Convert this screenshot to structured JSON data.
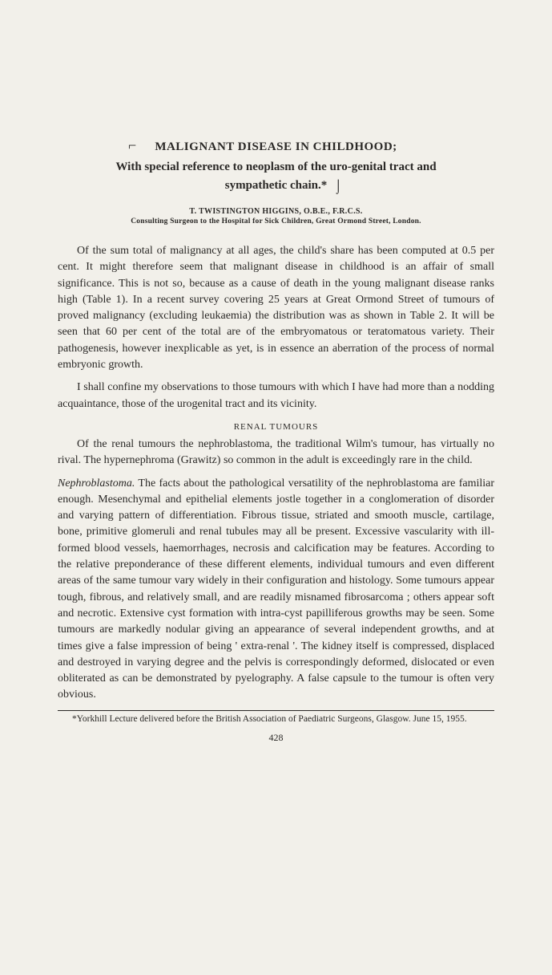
{
  "title_main": "MALIGNANT DISEASE IN CHILDHOOD;",
  "subtitle_line1": "With special reference to neoplasm of the uro-genital tract and",
  "subtitle_line2": "sympathetic chain.*",
  "author": "T. TWISTINGTON HIGGINS, O.B.E., F.R.C.S.",
  "affiliation": "Consulting Surgeon to the Hospital for Sick Children, Great Ormond Street, London.",
  "para1": "Of the sum total of malignancy at all ages, the child's share has been computed at 0.5 per cent. It might therefore seem that malignant disease in childhood is an affair of small significance. This is not so, because as a cause of death in the young malignant disease ranks high (Table 1). In a recent survey covering 25 years at Great Ormond Street of tumours of proved malignancy (excluding leukaemia) the distribution was as shown in Table 2. It will be seen that 60 per cent of the total are of the embryomatous or teratomatous variety. Their pathogenesis, however inexplicable as yet, is in essence an aberration of the process of normal embryonic growth.",
  "para2": "I shall confine my observations to those tumours with which I have had more than a nodding acquaintance, those of the urogenital tract and its vicinity.",
  "section_heading": "RENAL TUMOURS",
  "para3": "Of the renal tumours the nephroblastoma, the traditional Wilm's tumour, has virtually no rival. The hypernephroma (Grawitz) so common in the adult is exceedingly rare in the child.",
  "para4_italic": "Nephroblastoma.",
  "para4_rest": " The facts about the pathological versatility of the nephroblastoma are familiar enough. Mesenchymal and epithelial elements jostle together in a conglomeration of disorder and varying pattern of differentiation. Fibrous tissue, striated and smooth muscle, cartilage, bone, primitive glomeruli and renal tubules may all be present. Excessive vascularity with ill-formed blood vessels, haemorrhages, necrosis and calcification may be features. According to the relative preponderance of these different elements, individual tumours and even different areas of the same tumour vary widely in their configuration and histology. Some tumours appear tough, fibrous, and relatively small, and are readily misnamed fibrosarcoma ; others appear soft and necrotic. Extensive cyst formation with intra-cyst papilliferous growths may be seen. Some tumours are markedly nodular giving an appearance of several independent growths, and at times give a false impression of being ' extra-renal '. The kidney itself is compressed, displaced and destroyed in varying degree and the pelvis is correspondingly deformed, dislocated or even obliterated as can be demonstrated by pyelography. A false capsule to the tumour is often very obvious.",
  "footnote": "*Yorkhill Lecture delivered before the British Association of Paediatric Surgeons, Glasgow. June 15, 1955.",
  "page_number": "428"
}
